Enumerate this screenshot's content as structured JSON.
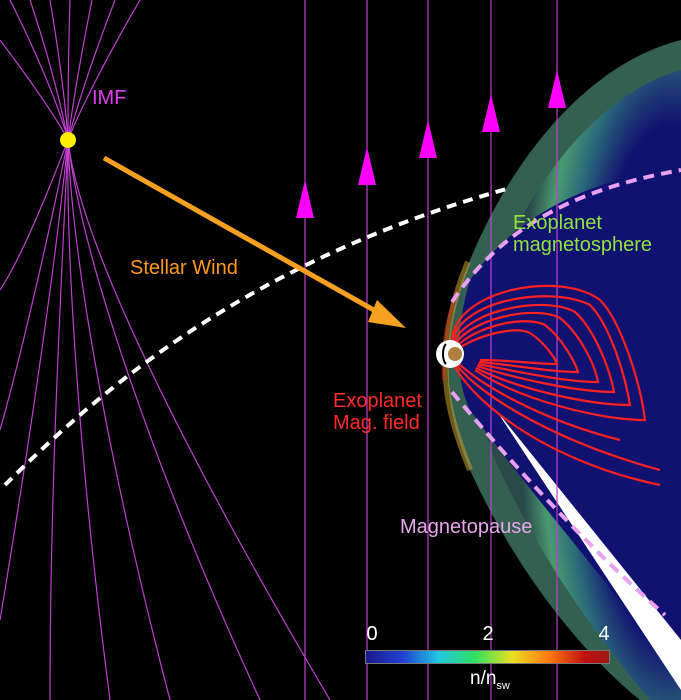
{
  "labels": {
    "imf": "IMF",
    "stellar_wind": "Stellar Wind",
    "magnetosphere_line1": "Exoplanet",
    "magnetosphere_line2": "magnetosphere",
    "field_line1": "Exoplanet",
    "field_line2": "Mag. field",
    "magnetopause": "Magnetopause"
  },
  "colorbar": {
    "ticks": [
      "0",
      "2",
      "4"
    ],
    "label_main": "n/n",
    "label_sub": "sw",
    "colors": [
      "#1a1a8c",
      "#2040d0",
      "#20c8e0",
      "#30e060",
      "#e8e020",
      "#ff7a10",
      "#c01010",
      "#a01818"
    ]
  },
  "colors": {
    "imf_lines": "#c040d0",
    "star": "#ffee00",
    "wind_arrow": "#f5a020",
    "field_lines": "#ff2020",
    "magnetopause": "#e8a0f0",
    "bow_shock": "#ffffff",
    "arrowheads": "#ff00ff",
    "background": "#000000"
  }
}
